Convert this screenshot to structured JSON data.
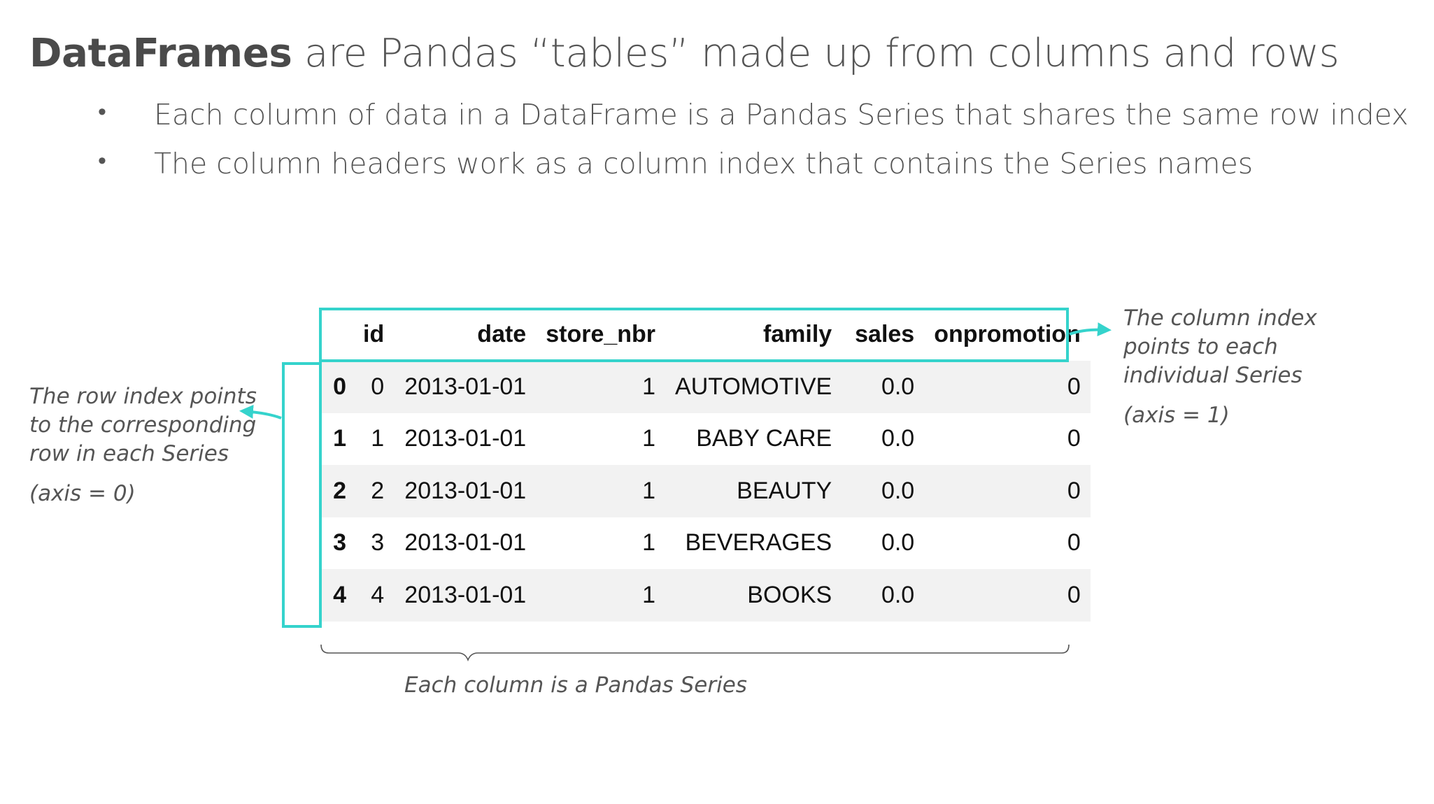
{
  "title": {
    "bold": "DataFrames",
    "rest": " are Pandas “tables” made up from columns and rows"
  },
  "bullets": [
    "Each column of data in a DataFrame is a Pandas Series that shares the same row index",
    "The column headers work as a column index that contains the Series names"
  ],
  "table": {
    "columns": [
      "id",
      "date",
      "store_nbr",
      "family",
      "sales",
      "onpromotion"
    ],
    "rows": [
      {
        "index": "0",
        "id": "0",
        "date": "2013-01-01",
        "store_nbr": "1",
        "family": "AUTOMOTIVE",
        "sales": "0.0",
        "onpromotion": "0"
      },
      {
        "index": "1",
        "id": "1",
        "date": "2013-01-01",
        "store_nbr": "1",
        "family": "BABY CARE",
        "sales": "0.0",
        "onpromotion": "0"
      },
      {
        "index": "2",
        "id": "2",
        "date": "2013-01-01",
        "store_nbr": "1",
        "family": "BEAUTY",
        "sales": "0.0",
        "onpromotion": "0"
      },
      {
        "index": "3",
        "id": "3",
        "date": "2013-01-01",
        "store_nbr": "1",
        "family": "BEVERAGES",
        "sales": "0.0",
        "onpromotion": "0"
      },
      {
        "index": "4",
        "id": "4",
        "date": "2013-01-01",
        "store_nbr": "1",
        "family": "BOOKS",
        "sales": "0.0",
        "onpromotion": "0"
      }
    ]
  },
  "annotations": {
    "row_index": {
      "lines": [
        "The row index points",
        "to the corresponding",
        "row in each Series"
      ],
      "axis": "(axis = 0)"
    },
    "column_index": {
      "lines": [
        "The column index",
        "points to each",
        "individual Series"
      ],
      "axis": "(axis = 1)"
    },
    "series": "Each column is a Pandas Series"
  },
  "colors": {
    "highlight": "#35d3cc",
    "text": "#555555",
    "stripe": "#f2f2f2"
  }
}
